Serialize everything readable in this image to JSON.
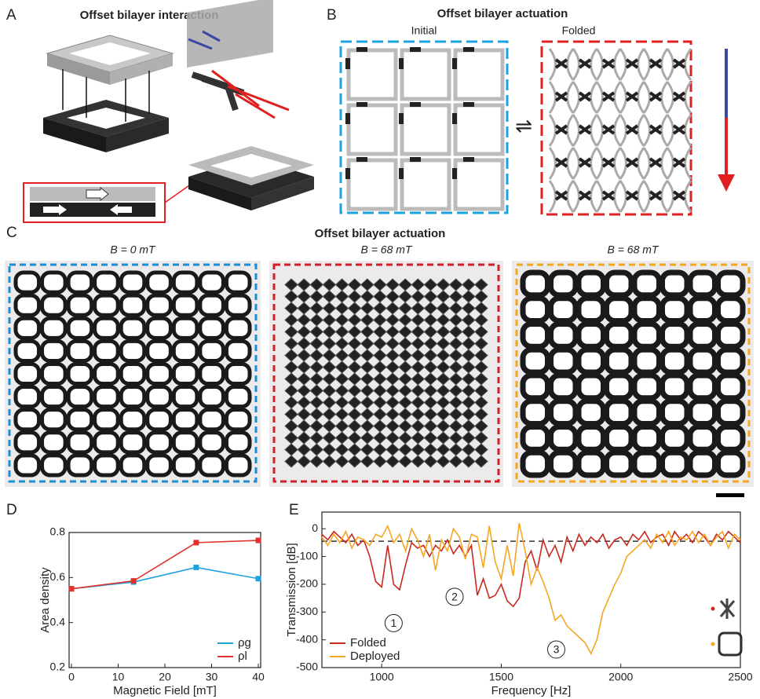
{
  "panel_a": {
    "label": "A",
    "title": "Offset bilayer interaction"
  },
  "panel_b": {
    "label": "B",
    "title": "Offset bilayer actuation",
    "initial": "Initial",
    "folded": "Folded",
    "symbol": "⇌"
  },
  "panel_c": {
    "label": "C",
    "title": "Offset bilayer actuation",
    "photos": [
      "B = 0 mT",
      "B = 68 mT",
      "B = 68 mT"
    ]
  },
  "chart_data": [
    {
      "type": "line",
      "panel_label": "D",
      "xlabel": "Magnetic Field [mT]",
      "ylabel": "Area density",
      "x": [
        0,
        13.3,
        26.7,
        40
      ],
      "series": [
        {
          "name": "ρg",
          "color": "#1ba3e0",
          "values": [
            0.55,
            0.58,
            0.645,
            0.595
          ]
        },
        {
          "name": "ρl",
          "color": "#e0312b",
          "values": [
            0.55,
            0.585,
            0.755,
            0.765
          ]
        }
      ],
      "xlim": [
        -0.5,
        40.5
      ],
      "xticks": [
        0,
        10,
        20,
        30,
        40
      ],
      "ylim": [
        0.2,
        0.8
      ],
      "yticks": [
        0.2,
        0.4,
        0.6,
        0.8
      ],
      "marker": "square",
      "legend": "lower right"
    },
    {
      "type": "line",
      "panel_label": "E",
      "xlabel": "Frequency [Hz]",
      "ylabel": "Transmission [dB]",
      "x": [
        750,
        775,
        800,
        825,
        850,
        875,
        900,
        925,
        950,
        975,
        1000,
        1025,
        1050,
        1075,
        1100,
        1125,
        1150,
        1175,
        1200,
        1225,
        1250,
        1275,
        1300,
        1325,
        1350,
        1375,
        1400,
        1425,
        1450,
        1475,
        1500,
        1525,
        1550,
        1575,
        1600,
        1625,
        1650,
        1675,
        1700,
        1725,
        1750,
        1775,
        1800,
        1825,
        1850,
        1875,
        1900,
        1925,
        1950,
        1975,
        2000,
        2025,
        2050,
        2075,
        2100,
        2125,
        2150,
        2175,
        2200,
        2225,
        2250,
        2275,
        2300,
        2325,
        2350,
        2375,
        2400,
        2425,
        2450,
        2475,
        2500
      ],
      "series": [
        {
          "name": "Folded",
          "color": "#c8281e",
          "values": [
            -20,
            -40,
            -10,
            -30,
            -50,
            -20,
            -60,
            -40,
            -100,
            -190,
            -210,
            -60,
            -200,
            -220,
            -130,
            -50,
            -70,
            -60,
            -100,
            -60,
            -80,
            -40,
            -90,
            -60,
            -100,
            -60,
            -240,
            -180,
            -250,
            -240,
            -200,
            -260,
            -280,
            -250,
            -120,
            -80,
            -150,
            -40,
            -100,
            -60,
            -120,
            -30,
            -80,
            -20,
            -60,
            -30,
            -50,
            -20,
            -70,
            -40,
            -30,
            -60,
            -20,
            -40,
            -10,
            -50,
            -30,
            -20,
            -60,
            -10,
            -40,
            -20,
            -50,
            -10,
            -30,
            -60,
            -20,
            -40,
            -10,
            -30,
            -50
          ]
        },
        {
          "name": "Deployed",
          "color": "#f5a623",
          "values": [
            -30,
            -60,
            -20,
            -50,
            -10,
            -70,
            -30,
            -40,
            -60,
            -20,
            -30,
            10,
            -50,
            -20,
            -80,
            0,
            -40,
            -100,
            -20,
            -150,
            -40,
            -80,
            0,
            -30,
            -110,
            -20,
            -30,
            -140,
            10,
            -120,
            -180,
            -60,
            -170,
            20,
            -80,
            -200,
            -140,
            -190,
            -250,
            -330,
            -310,
            -350,
            -370,
            -390,
            -410,
            -450,
            -400,
            -300,
            -250,
            -200,
            -160,
            -100,
            -80,
            -60,
            -40,
            -70,
            -20,
            -50,
            -10,
            -60,
            -30,
            -40,
            -10,
            -50,
            -20,
            -60,
            -30,
            -10,
            -70,
            -20,
            -40
          ]
        }
      ],
      "xlim": [
        750,
        2500
      ],
      "xticks": [
        1000,
        1500,
        2000,
        2500
      ],
      "ylim": [
        -500,
        60
      ],
      "yticks": [
        -500,
        -400,
        -300,
        -200,
        -100,
        0
      ],
      "hline": -45,
      "annotations": [
        "1",
        "2",
        "3"
      ],
      "legend": "lower left"
    }
  ]
}
